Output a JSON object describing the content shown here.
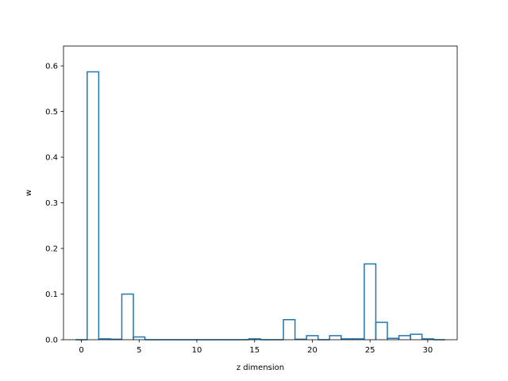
{
  "chart_data": {
    "type": "bar",
    "style": "step-histogram",
    "color": "#1f77b4",
    "title": "",
    "xlabel": "z dimension",
    "ylabel": "w",
    "xlim": [
      -1.55,
      32.55
    ],
    "ylim": [
      0,
      0.6435
    ],
    "xticks": [
      0,
      5,
      10,
      15,
      20,
      25,
      30
    ],
    "yticks": [
      0.0,
      0.1,
      0.2,
      0.3,
      0.4,
      0.5,
      0.6
    ],
    "x": [
      0,
      1,
      2,
      3,
      4,
      5,
      6,
      7,
      8,
      9,
      10,
      11,
      12,
      13,
      14,
      15,
      16,
      17,
      18,
      19,
      20,
      21,
      22,
      23,
      24,
      25,
      26,
      27,
      28,
      29,
      30,
      31
    ],
    "values": [
      0.0,
      0.587,
      0.002,
      0.001,
      0.1,
      0.006,
      0.0,
      0.0,
      0.0,
      0.0,
      0.0,
      0.0,
      0.0,
      0.0,
      0.0,
      0.002,
      0.0,
      0.0,
      0.044,
      0.001,
      0.009,
      0.0,
      0.009,
      0.002,
      0.002,
      0.166,
      0.038,
      0.003,
      0.009,
      0.012,
      0.002,
      0.0
    ]
  }
}
